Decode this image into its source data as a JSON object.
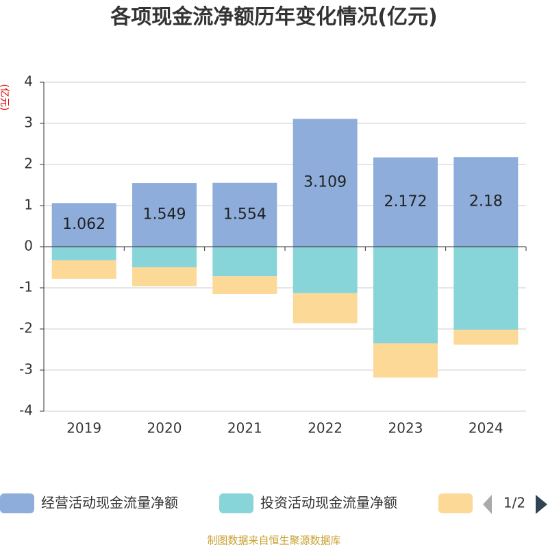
{
  "chart_data": {
    "type": "bar",
    "stacked": true,
    "title": "各项现金流净额历年变化情况(亿元)",
    "y_label": "(亿元)",
    "categories": [
      "2019",
      "2020",
      "2021",
      "2022",
      "2023",
      "2024"
    ],
    "series": [
      {
        "name": "经营活动现金流量净额",
        "color": "#8eaddb",
        "values": [
          1.062,
          1.549,
          1.554,
          3.109,
          2.172,
          2.18
        ],
        "data_labels": true
      },
      {
        "name": "投资活动现金流量净额",
        "color": "#87d5d8",
        "values": [
          -0.33,
          -0.5,
          -0.72,
          -1.13,
          -2.35,
          -2.02
        ]
      },
      {
        "color": "#fdd998",
        "values": [
          -0.45,
          -0.46,
          -0.43,
          -0.73,
          -0.83,
          -0.36
        ]
      }
    ],
    "ylim": [
      -4,
      4
    ],
    "yticks": [
      -4,
      -3,
      -2,
      -1,
      0,
      1,
      2,
      3,
      4
    ],
    "grid": true,
    "legend_page": "1/2",
    "source": "制图数据来自恒生聚源数据库"
  }
}
